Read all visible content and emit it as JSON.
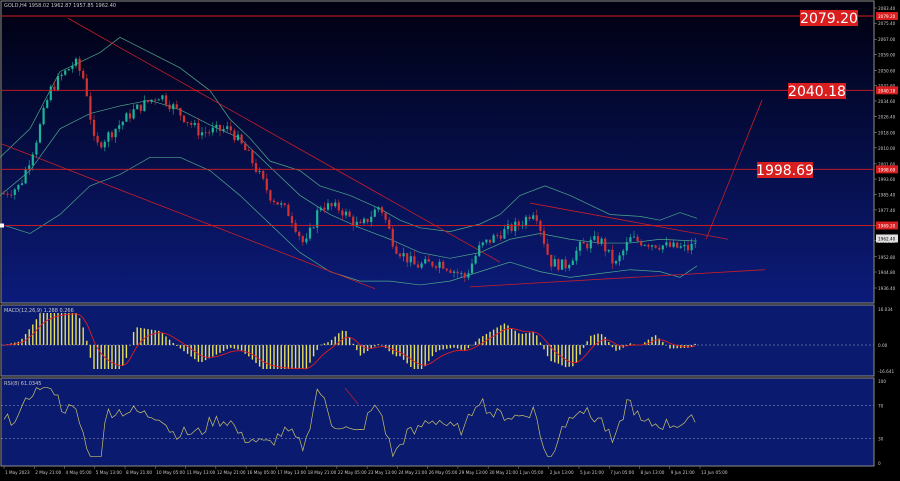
{
  "window": {
    "symbol_info": "GOLD,H4",
    "ohlc_info": "1958.02 1962.87 1957.85 1962.40"
  },
  "colors": {
    "background_top": "#000012",
    "background_bottom": "#0b1a78",
    "panel_bg": "#0a1a6e",
    "level_line": "#d81e1e",
    "level_box_bg": "#d81e1e",
    "level_text": "#ffffff",
    "candle_bull": "#1eb496",
    "candle_bear": "#d23232",
    "bollinger": "#4fa88a",
    "macd_hist": "#e8e05a",
    "macd_signal": "#e01e1e",
    "rsi_line": "#c9c36a",
    "axis_text": "#c8c8c8",
    "grid_border": "#8e8e8e"
  },
  "price_axis": {
    "ticks": [
      "2083.40",
      "2075.40",
      "2067.00",
      "2059.00",
      "2050.60",
      "2042.60",
      "2034.60",
      "2026.40",
      "2018.00",
      "2010.00",
      "2001.60",
      "1993.60",
      "1985.40",
      "1977.40",
      "1969.20",
      "1961.20",
      "1952.80",
      "1944.80",
      "1936.40"
    ],
    "current_price": "1962.40",
    "level_tag_top": "2079.20",
    "level_tag_mid": "2040.18",
    "level_tag_low": "1998.69",
    "level_tag_bottom": "1969.20"
  },
  "levels": {
    "l1": "2079.20",
    "l2": "2040.18",
    "l3": "1998.69"
  },
  "macd": {
    "label": "MACD(12,26,9) 1.288 0.266",
    "ticks": [
      "16.034",
      "0.00",
      "-16.641"
    ]
  },
  "rsi": {
    "label": "RSI(8) 61.0345",
    "ticks": [
      "100",
      "70",
      "30",
      "0"
    ]
  },
  "time_axis": [
    "1 May 2023",
    "2 May 21:00",
    "4 May 05:00",
    "5 May 13:00",
    "8 May 21:00",
    "10 May 05:00",
    "11 May 13:00",
    "12 May 21:00",
    "16 May 05:00",
    "17 May 13:00",
    "18 May 21:00",
    "22 May 05:00",
    "23 May 13:00",
    "24 May 21:00",
    "26 May 05:00",
    "29 May 13:00",
    "30 May 21:00",
    "1 Jun 05:00",
    "2 Jun 13:00",
    "5 Jun 21:00",
    "7 Jun 05:00",
    "8 Jun 13:00",
    "9 Jun 21:00",
    "13 Jun 05:00"
  ]
}
